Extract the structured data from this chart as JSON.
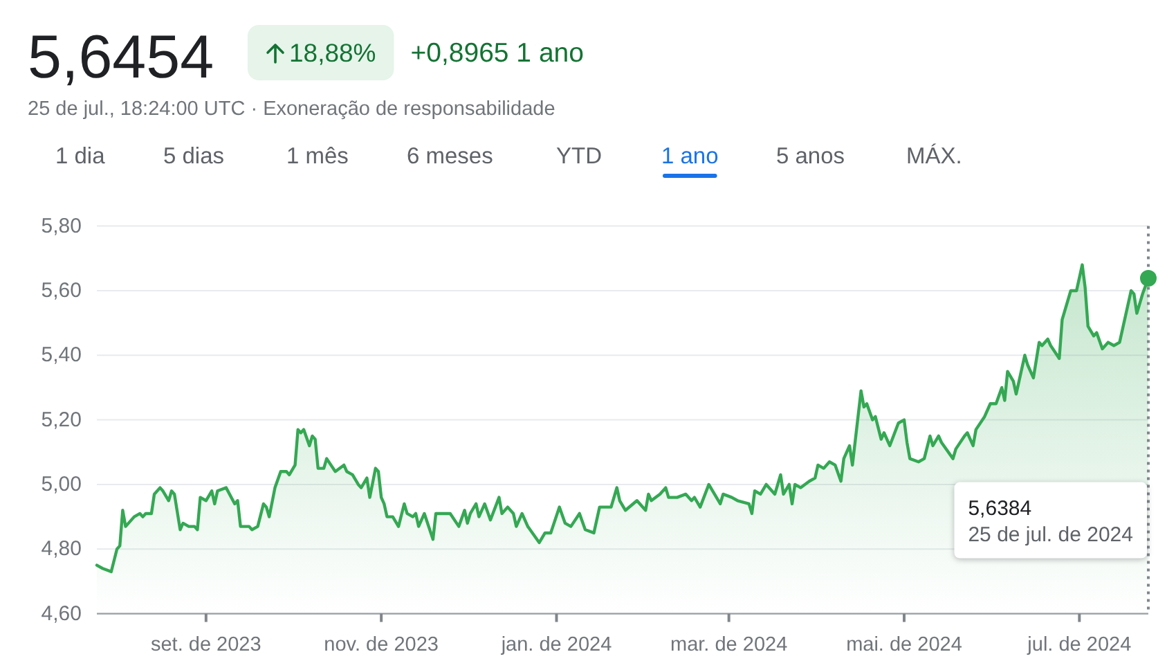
{
  "chart_data": {
    "type": "area",
    "title": "5,6454",
    "subtitle": "25 de jul., 18:24:00 UTC · Exoneração de responsabilidade",
    "annotations": [
      "18,88%",
      "+0,8965 1 ano",
      "1 dia",
      "5 dias",
      "1 mês",
      "6 meses",
      "YTD",
      "1 ano",
      "5 anos",
      "MÁX.",
      "5,6384",
      "25 de jul. de 2024"
    ],
    "xlim": [
      "2023-07-25",
      "2024-07-25"
    ],
    "xticks": [
      {
        "value": "2023-09-01",
        "label": "set. de 2023"
      },
      {
        "value": "2023-11-01",
        "label": "nov. de 2023"
      },
      {
        "value": "2024-01-01",
        "label": "jan. de 2024"
      },
      {
        "value": "2024-03-01",
        "label": "mar. de 2024"
      },
      {
        "value": "2024-05-01",
        "label": "mai. de 2024"
      },
      {
        "value": "2024-07-01",
        "label": "jul. de 2024"
      }
    ],
    "ylim": [
      4.6,
      5.8
    ],
    "yticks": [
      {
        "value": 4.6,
        "label": "4,60"
      },
      {
        "value": 4.8,
        "label": "4,80"
      },
      {
        "value": 5.0,
        "label": "5,00"
      },
      {
        "value": 5.2,
        "label": "5,20"
      },
      {
        "value": 5.4,
        "label": "5,40"
      },
      {
        "value": 5.6,
        "label": "5,60"
      },
      {
        "value": 5.8,
        "label": "5,80"
      }
    ],
    "grid": "y",
    "ref_lines": [
      {
        "axis": "x",
        "value": "2024-07-25",
        "color": "#80868b",
        "line_style": "dotted"
      }
    ],
    "x": [
      "2023-07-25",
      "2023-07-27",
      "2023-07-30",
      "2023-08-01",
      "2023-08-02",
      "2023-08-03",
      "2023-08-04",
      "2023-08-07",
      "2023-08-09",
      "2023-08-10",
      "2023-08-11",
      "2023-08-13",
      "2023-08-14",
      "2023-08-16",
      "2023-08-17",
      "2023-08-19",
      "2023-08-20",
      "2023-08-21",
      "2023-08-23",
      "2023-08-24",
      "2023-08-26",
      "2023-08-28",
      "2023-08-29",
      "2023-08-30",
      "2023-09-01",
      "2023-09-03",
      "2023-09-04",
      "2023-09-05",
      "2023-09-08",
      "2023-09-11",
      "2023-09-12",
      "2023-09-13",
      "2023-09-16",
      "2023-09-17",
      "2023-09-19",
      "2023-09-21",
      "2023-09-22",
      "2023-09-23",
      "2023-09-25",
      "2023-09-27",
      "2023-09-29",
      "2023-09-30",
      "2023-10-02",
      "2023-10-03",
      "2023-10-04",
      "2023-10-05",
      "2023-10-07",
      "2023-10-08",
      "2023-10-09",
      "2023-10-10",
      "2023-10-12",
      "2023-10-13",
      "2023-10-16",
      "2023-10-19",
      "2023-10-20",
      "2023-10-22",
      "2023-10-24",
      "2023-10-25",
      "2023-10-27",
      "2023-10-28",
      "2023-10-30",
      "2023-10-31",
      "2023-11-01",
      "2023-11-02",
      "2023-11-03",
      "2023-11-05",
      "2023-11-07",
      "2023-11-09",
      "2023-11-10",
      "2023-11-12",
      "2023-11-13",
      "2023-11-14",
      "2023-11-16",
      "2023-11-19",
      "2023-11-20",
      "2023-11-25",
      "2023-11-28",
      "2023-11-30",
      "2023-12-01",
      "2023-12-02",
      "2023-12-04",
      "2023-12-05",
      "2023-12-07",
      "2023-12-09",
      "2023-12-12",
      "2023-12-13",
      "2023-12-15",
      "2023-12-17",
      "2023-12-18",
      "2023-12-20",
      "2023-12-22",
      "2023-12-26",
      "2023-12-28",
      "2023-12-30",
      "2024-01-02",
      "2024-01-04",
      "2024-01-06",
      "2024-01-09",
      "2024-01-11",
      "2024-01-14",
      "2024-01-16",
      "2024-01-20",
      "2024-01-22",
      "2024-01-23",
      "2024-01-25",
      "2024-01-29",
      "2024-02-01",
      "2024-02-02",
      "2024-02-03",
      "2024-02-06",
      "2024-02-08",
      "2024-02-09",
      "2024-02-12",
      "2024-02-15",
      "2024-02-17",
      "2024-02-18",
      "2024-02-20",
      "2024-02-23",
      "2024-02-27",
      "2024-02-28",
      "2024-03-02",
      "2024-03-04",
      "2024-03-08",
      "2024-03-09",
      "2024-03-10",
      "2024-03-12",
      "2024-03-14",
      "2024-03-17",
      "2024-03-19",
      "2024-03-20",
      "2024-03-22",
      "2024-03-23",
      "2024-03-24",
      "2024-03-26",
      "2024-03-29",
      "2024-03-31",
      "2024-04-01",
      "2024-04-03",
      "2024-04-05",
      "2024-04-07",
      "2024-04-09",
      "2024-04-10",
      "2024-04-12",
      "2024-04-13",
      "2024-04-16",
      "2024-04-17",
      "2024-04-18",
      "2024-04-20",
      "2024-04-21",
      "2024-04-23",
      "2024-04-24",
      "2024-04-26",
      "2024-04-29",
      "2024-05-01",
      "2024-05-02",
      "2024-05-03",
      "2024-05-06",
      "2024-05-08",
      "2024-05-10",
      "2024-05-11",
      "2024-05-13",
      "2024-05-14",
      "2024-05-18",
      "2024-05-19",
      "2024-05-22",
      "2024-05-23",
      "2024-05-25",
      "2024-05-26",
      "2024-05-29",
      "2024-05-31",
      "2024-06-02",
      "2024-06-04",
      "2024-06-05",
      "2024-06-06",
      "2024-06-08",
      "2024-06-09",
      "2024-06-12",
      "2024-06-13",
      "2024-06-15",
      "2024-06-17",
      "2024-06-18",
      "2024-06-20",
      "2024-06-21",
      "2024-06-24",
      "2024-06-25",
      "2024-06-28",
      "2024-06-30",
      "2024-07-02",
      "2024-07-03",
      "2024-07-04",
      "2024-07-06",
      "2024-07-07",
      "2024-07-09",
      "2024-07-11",
      "2024-07-13",
      "2024-07-15",
      "2024-07-19",
      "2024-07-20",
      "2024-07-21",
      "2024-07-23",
      "2024-07-25"
    ],
    "series": [
      {
        "color": "#34a853",
        "values": [
          4.75,
          4.74,
          4.73,
          4.8,
          4.81,
          4.92,
          4.87,
          4.9,
          4.91,
          4.9,
          4.91,
          4.91,
          4.97,
          4.99,
          4.98,
          4.95,
          4.98,
          4.97,
          4.86,
          4.88,
          4.87,
          4.87,
          4.86,
          4.96,
          4.95,
          4.98,
          4.94,
          4.98,
          4.99,
          4.94,
          4.95,
          4.87,
          4.87,
          4.86,
          4.87,
          4.94,
          4.93,
          4.9,
          4.99,
          5.04,
          5.04,
          5.03,
          5.06,
          5.17,
          5.16,
          5.17,
          5.12,
          5.15,
          5.14,
          5.05,
          5.05,
          5.08,
          5.04,
          5.06,
          5.04,
          5.03,
          5.0,
          4.99,
          5.02,
          4.96,
          5.05,
          5.04,
          4.96,
          4.94,
          4.9,
          4.9,
          4.87,
          4.94,
          4.91,
          4.9,
          4.91,
          4.87,
          4.91,
          4.83,
          4.91,
          4.91,
          4.87,
          4.92,
          4.88,
          4.91,
          4.94,
          4.9,
          4.94,
          4.89,
          4.96,
          4.91,
          4.93,
          4.91,
          4.87,
          4.91,
          4.87,
          4.82,
          4.85,
          4.85,
          4.93,
          4.88,
          4.87,
          4.91,
          4.86,
          4.85,
          4.93,
          4.93,
          4.99,
          4.95,
          4.92,
          4.95,
          4.92,
          4.97,
          4.95,
          4.97,
          4.99,
          4.96,
          4.96,
          4.97,
          4.95,
          4.96,
          4.93,
          5.0,
          4.94,
          4.97,
          4.96,
          4.95,
          4.94,
          4.91,
          4.98,
          4.97,
          5.0,
          4.97,
          5.03,
          4.97,
          5.0,
          4.94,
          5.0,
          4.99,
          5.01,
          5.02,
          5.06,
          5.05,
          5.07,
          5.06,
          5.01,
          5.08,
          5.12,
          5.06,
          5.29,
          5.24,
          5.25,
          5.2,
          5.21,
          5.14,
          5.16,
          5.12,
          5.19,
          5.2,
          5.13,
          5.08,
          5.07,
          5.08,
          5.15,
          5.12,
          5.15,
          5.13,
          5.08,
          5.11,
          5.15,
          5.16,
          5.12,
          5.17,
          5.21,
          5.25,
          5.25,
          5.3,
          5.26,
          5.35,
          5.32,
          5.28,
          5.4,
          5.37,
          5.33,
          5.44,
          5.43,
          5.45,
          5.43,
          5.39,
          5.51,
          5.6,
          5.6,
          5.68,
          5.61,
          5.49,
          5.46,
          5.47,
          5.42,
          5.44,
          5.43,
          5.44,
          5.6,
          5.59,
          5.53,
          5.59,
          5.6384
        ]
      },
      {
        "type": "scatter",
        "marker": "circle",
        "color": "#34a853",
        "x": [
          "2024-07-25"
        ],
        "values": [
          5.6384
        ]
      }
    ]
  }
}
